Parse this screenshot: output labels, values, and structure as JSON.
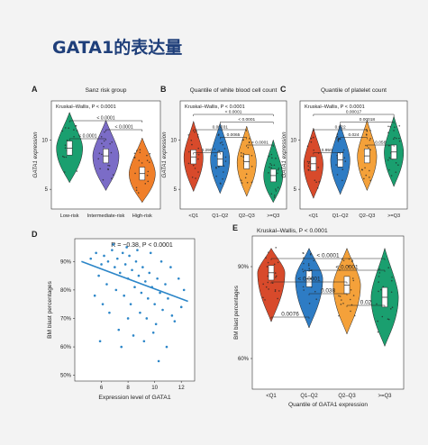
{
  "slide": {
    "title": "GATA1的表达量"
  },
  "colors": {
    "green": "#1a9f6f",
    "purple": "#7b6cc7",
    "orange": "#f07f2a",
    "red": "#d84a2b",
    "blue": "#2e7cc4",
    "yellow": "#f4a13a",
    "scatter": "#2c86c8"
  },
  "chart_data": [
    {
      "panel": "A",
      "type": "violin",
      "title": "Sanz risk group",
      "test": "Kruskal–Wallis, P < 0.0001",
      "ylabel": "GATA1 expression",
      "ylim": [
        3,
        14
      ],
      "yticks": [
        5,
        10
      ],
      "categories": [
        "Low-risk",
        "Intermediate-risk",
        "High-risk"
      ],
      "medians": [
        9.2,
        8.4,
        6.6
      ],
      "comparisons": [
        {
          "pair": [
            "Low-risk",
            "High-risk"
          ],
          "label": "< 0.0001"
        },
        {
          "pair": [
            "Intermediate-risk",
            "High-risk"
          ],
          "label": "< 0.0001"
        },
        {
          "pair": [
            "Low-risk",
            "Intermediate-risk"
          ],
          "label": "< 0.0001"
        }
      ]
    },
    {
      "panel": "B",
      "type": "violin",
      "title": "Quantile of white blood cell count",
      "test": "Kruskal–Wallis, P < 0.0001",
      "ylabel": "GATA1 expression",
      "ylim": [
        3,
        14
      ],
      "yticks": [
        5,
        10
      ],
      "categories": [
        "<Q1",
        "Q1–Q2",
        "Q2–Q3",
        ">=Q3"
      ],
      "medians": [
        8.3,
        8.1,
        7.8,
        6.4
      ],
      "comparisons": [
        {
          "pair": [
            "<Q1",
            ">=Q3"
          ],
          "label": "< 0.0001"
        },
        {
          "pair": [
            "Q1–Q2",
            ">=Q3"
          ],
          "label": "< 0.0001"
        },
        {
          "pair": [
            "<Q1",
            "Q2–Q3"
          ],
          "label": "0.00031"
        },
        {
          "pair": [
            "Q1–Q2",
            "Q2–Q3"
          ],
          "label": "0.0065"
        },
        {
          "pair": [
            "Q2–Q3",
            ">=Q3"
          ],
          "label": "< 0.0001"
        },
        {
          "pair": [
            "<Q1",
            "Q1–Q2"
          ],
          "label": "0.290"
        }
      ]
    },
    {
      "panel": "C",
      "type": "violin",
      "title": "Quantile of platelet count",
      "test": "Kruskal–Wallis, P < 0.0001",
      "ylabel": "GATA1 expression",
      "ylim": [
        3,
        14
      ],
      "yticks": [
        5,
        10
      ],
      "categories": [
        "<Q1",
        "Q1–Q2",
        "Q2–Q3",
        ">=Q3"
      ],
      "medians": [
        7.6,
        8.0,
        8.4,
        8.8
      ],
      "comparisons": [
        {
          "pair": [
            "<Q1",
            ">=Q3"
          ],
          "label": "0.00017"
        },
        {
          "pair": [
            "Q1–Q2",
            ">=Q3"
          ],
          "label": "0.00018"
        },
        {
          "pair": [
            "<Q1",
            "Q2–Q3"
          ],
          "label": "0.022"
        },
        {
          "pair": [
            "Q1–Q2",
            "Q2–Q3"
          ],
          "label": "0.024"
        },
        {
          "pair": [
            "Q2–Q3",
            ">=Q3"
          ],
          "label": "0.058"
        },
        {
          "pair": [
            "<Q1",
            "Q1–Q2"
          ],
          "label": "0.950"
        }
      ]
    },
    {
      "panel": "D",
      "type": "scatter",
      "annotation": "R = −0.38, P < 0.0001",
      "xlabel": "Expression level of GATA1",
      "ylabel": "BM blast percentages",
      "xlim": [
        4,
        13
      ],
      "ylim": [
        48,
        98
      ],
      "xticks": [
        6,
        8,
        10,
        12
      ],
      "yticks": [
        50,
        60,
        70,
        80,
        90
      ],
      "ytick_labels": [
        "50%",
        "60%",
        "70%",
        "80%",
        "90%"
      ],
      "fit": {
        "x": [
          4.5,
          12.5
        ],
        "y": [
          90,
          76
        ]
      },
      "points": [
        [
          5.2,
          91
        ],
        [
          5.6,
          93
        ],
        [
          6.0,
          89
        ],
        [
          6.2,
          92
        ],
        [
          6.5,
          90
        ],
        [
          6.8,
          94
        ],
        [
          7.0,
          88
        ],
        [
          7.2,
          91
        ],
        [
          7.4,
          86
        ],
        [
          7.6,
          93
        ],
        [
          7.8,
          89
        ],
        [
          8.0,
          84
        ],
        [
          8.1,
          92
        ],
        [
          8.3,
          87
        ],
        [
          8.5,
          81
        ],
        [
          8.6,
          90
        ],
        [
          8.8,
          85
        ],
        [
          9.0,
          79
        ],
        [
          9.1,
          88
        ],
        [
          9.3,
          83
        ],
        [
          9.5,
          77
        ],
        [
          9.6,
          86
        ],
        [
          9.8,
          81
        ],
        [
          10.0,
          75
        ],
        [
          10.2,
          84
        ],
        [
          10.4,
          79
        ],
        [
          10.6,
          73
        ],
        [
          10.8,
          82
        ],
        [
          11.0,
          77
        ],
        [
          11.3,
          71
        ],
        [
          5.8,
          85
        ],
        [
          6.4,
          82
        ],
        [
          7.1,
          80
        ],
        [
          7.7,
          78
        ],
        [
          8.2,
          75
        ],
        [
          8.9,
          72
        ],
        [
          9.4,
          70
        ],
        [
          10.1,
          68
        ],
        [
          6.6,
          72
        ],
        [
          7.3,
          66
        ],
        [
          8.4,
          64
        ],
        [
          9.2,
          62
        ],
        [
          6.9,
          96
        ],
        [
          7.9,
          95
        ],
        [
          8.7,
          94
        ],
        [
          9.7,
          93
        ],
        [
          10.5,
          90
        ],
        [
          11.2,
          88
        ],
        [
          11.8,
          84
        ],
        [
          12.2,
          80
        ],
        [
          5.5,
          78
        ],
        [
          6.1,
          75
        ],
        [
          8.0,
          70
        ],
        [
          9.9,
          65
        ],
        [
          10.9,
          60
        ],
        [
          7.5,
          60
        ],
        [
          11.5,
          69
        ],
        [
          12.0,
          74
        ],
        [
          5.9,
          62
        ],
        [
          10.3,
          55
        ]
      ]
    },
    {
      "panel": "E",
      "type": "violin",
      "test": "Kruskal–Wallis, P < 0.0001",
      "xlabel": "Quantile of GATA1 expression",
      "ylabel": "BM blast percentages",
      "ylim": [
        50,
        100
      ],
      "yticks": [
        60,
        90
      ],
      "ytick_labels": [
        "60%",
        "90%"
      ],
      "categories": [
        "<Q1",
        "Q1–Q2",
        "Q2–Q3",
        ">=Q3"
      ],
      "medians": [
        88,
        86,
        84,
        80
      ],
      "comparisons": [
        {
          "pair": [
            "<Q1",
            ">=Q3"
          ],
          "label": "< 0.0001"
        },
        {
          "pair": [
            "Q1–Q2",
            ">=Q3"
          ],
          "label": "< 0.0001"
        },
        {
          "pair": [
            "<Q1",
            "Q2–Q3"
          ],
          "label": "< 0.0001"
        },
        {
          "pair": [
            "Q1–Q2",
            "Q2–Q3"
          ],
          "label": "0.038"
        },
        {
          "pair": [
            "Q2–Q3",
            ">=Q3"
          ],
          "label": "0.02"
        },
        {
          "pair": [
            "<Q1",
            "Q1–Q2"
          ],
          "label": "0.0076"
        }
      ]
    }
  ]
}
